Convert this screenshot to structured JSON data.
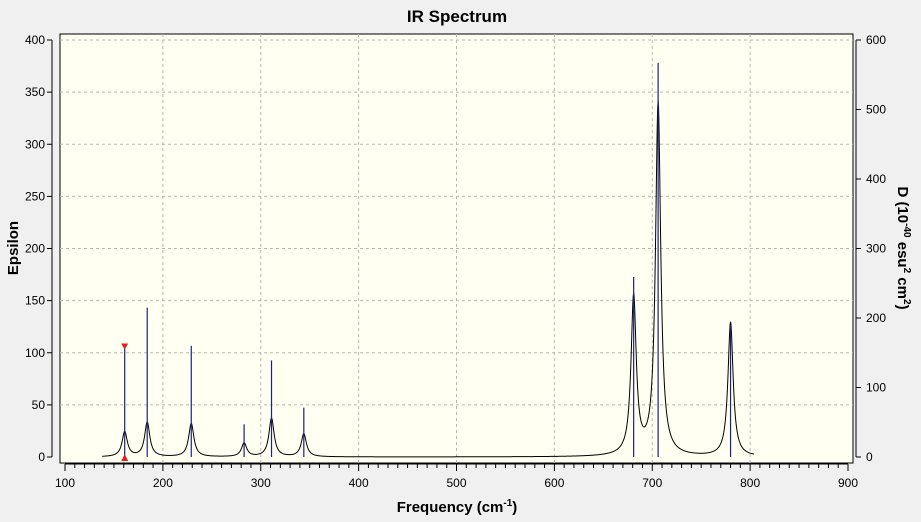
{
  "chart_data": {
    "type": "line",
    "title": "IR Spectrum",
    "xlabel": {
      "base": "Frequency (cm",
      "sup": "-1",
      "tail": ")"
    },
    "ylabel_left": "Epsilon",
    "ylabel_right": {
      "p1": "D (10",
      "sup1": "-40",
      "p2": " esu",
      "sup2": "2",
      "p3": " cm",
      "sup3": "2",
      "p4": ")"
    },
    "xlim": [
      100,
      900
    ],
    "ylim_left": [
      0,
      400
    ],
    "ylim_right": [
      0,
      600
    ],
    "x_ticks": [
      100,
      200,
      300,
      400,
      500,
      600,
      700,
      800,
      900
    ],
    "x_tick_labels": [
      "100",
      "200",
      "300",
      "400",
      "500",
      "600",
      "700",
      "800",
      "900"
    ],
    "y_left_ticks": [
      0,
      50,
      100,
      150,
      200,
      250,
      300,
      350,
      400
    ],
    "y_left_tick_labels": [
      "0",
      "50",
      "100",
      "150",
      "200",
      "250",
      "300",
      "350",
      "400"
    ],
    "y_right_ticks": [
      0,
      100,
      200,
      300,
      400,
      500,
      600
    ],
    "y_right_tick_labels": [
      "0",
      "100",
      "200",
      "300",
      "400",
      "500",
      "600"
    ],
    "grid": true,
    "spectrum_range": [
      138,
      804
    ],
    "peaks": [
      {
        "x": 161,
        "stick": 159,
        "epsilon": 24
      },
      {
        "x": 184,
        "stick": 215,
        "epsilon": 33
      },
      {
        "x": 229,
        "stick": 160,
        "epsilon": 32
      },
      {
        "x": 283,
        "stick": 47,
        "epsilon": 13
      },
      {
        "x": 311,
        "stick": 139,
        "epsilon": 37
      },
      {
        "x": 344,
        "stick": 71,
        "epsilon": 22
      },
      {
        "x": 681,
        "stick": 259,
        "epsilon": 152
      },
      {
        "x": 706,
        "stick": 567,
        "epsilon": 340
      },
      {
        "x": 780,
        "stick": 190,
        "epsilon": 129
      }
    ],
    "marker_x": 161,
    "colors": {
      "stick": "#1a237e",
      "curve": "#000000",
      "marker": "#e02020",
      "plot_bg": "#fffff2"
    }
  }
}
